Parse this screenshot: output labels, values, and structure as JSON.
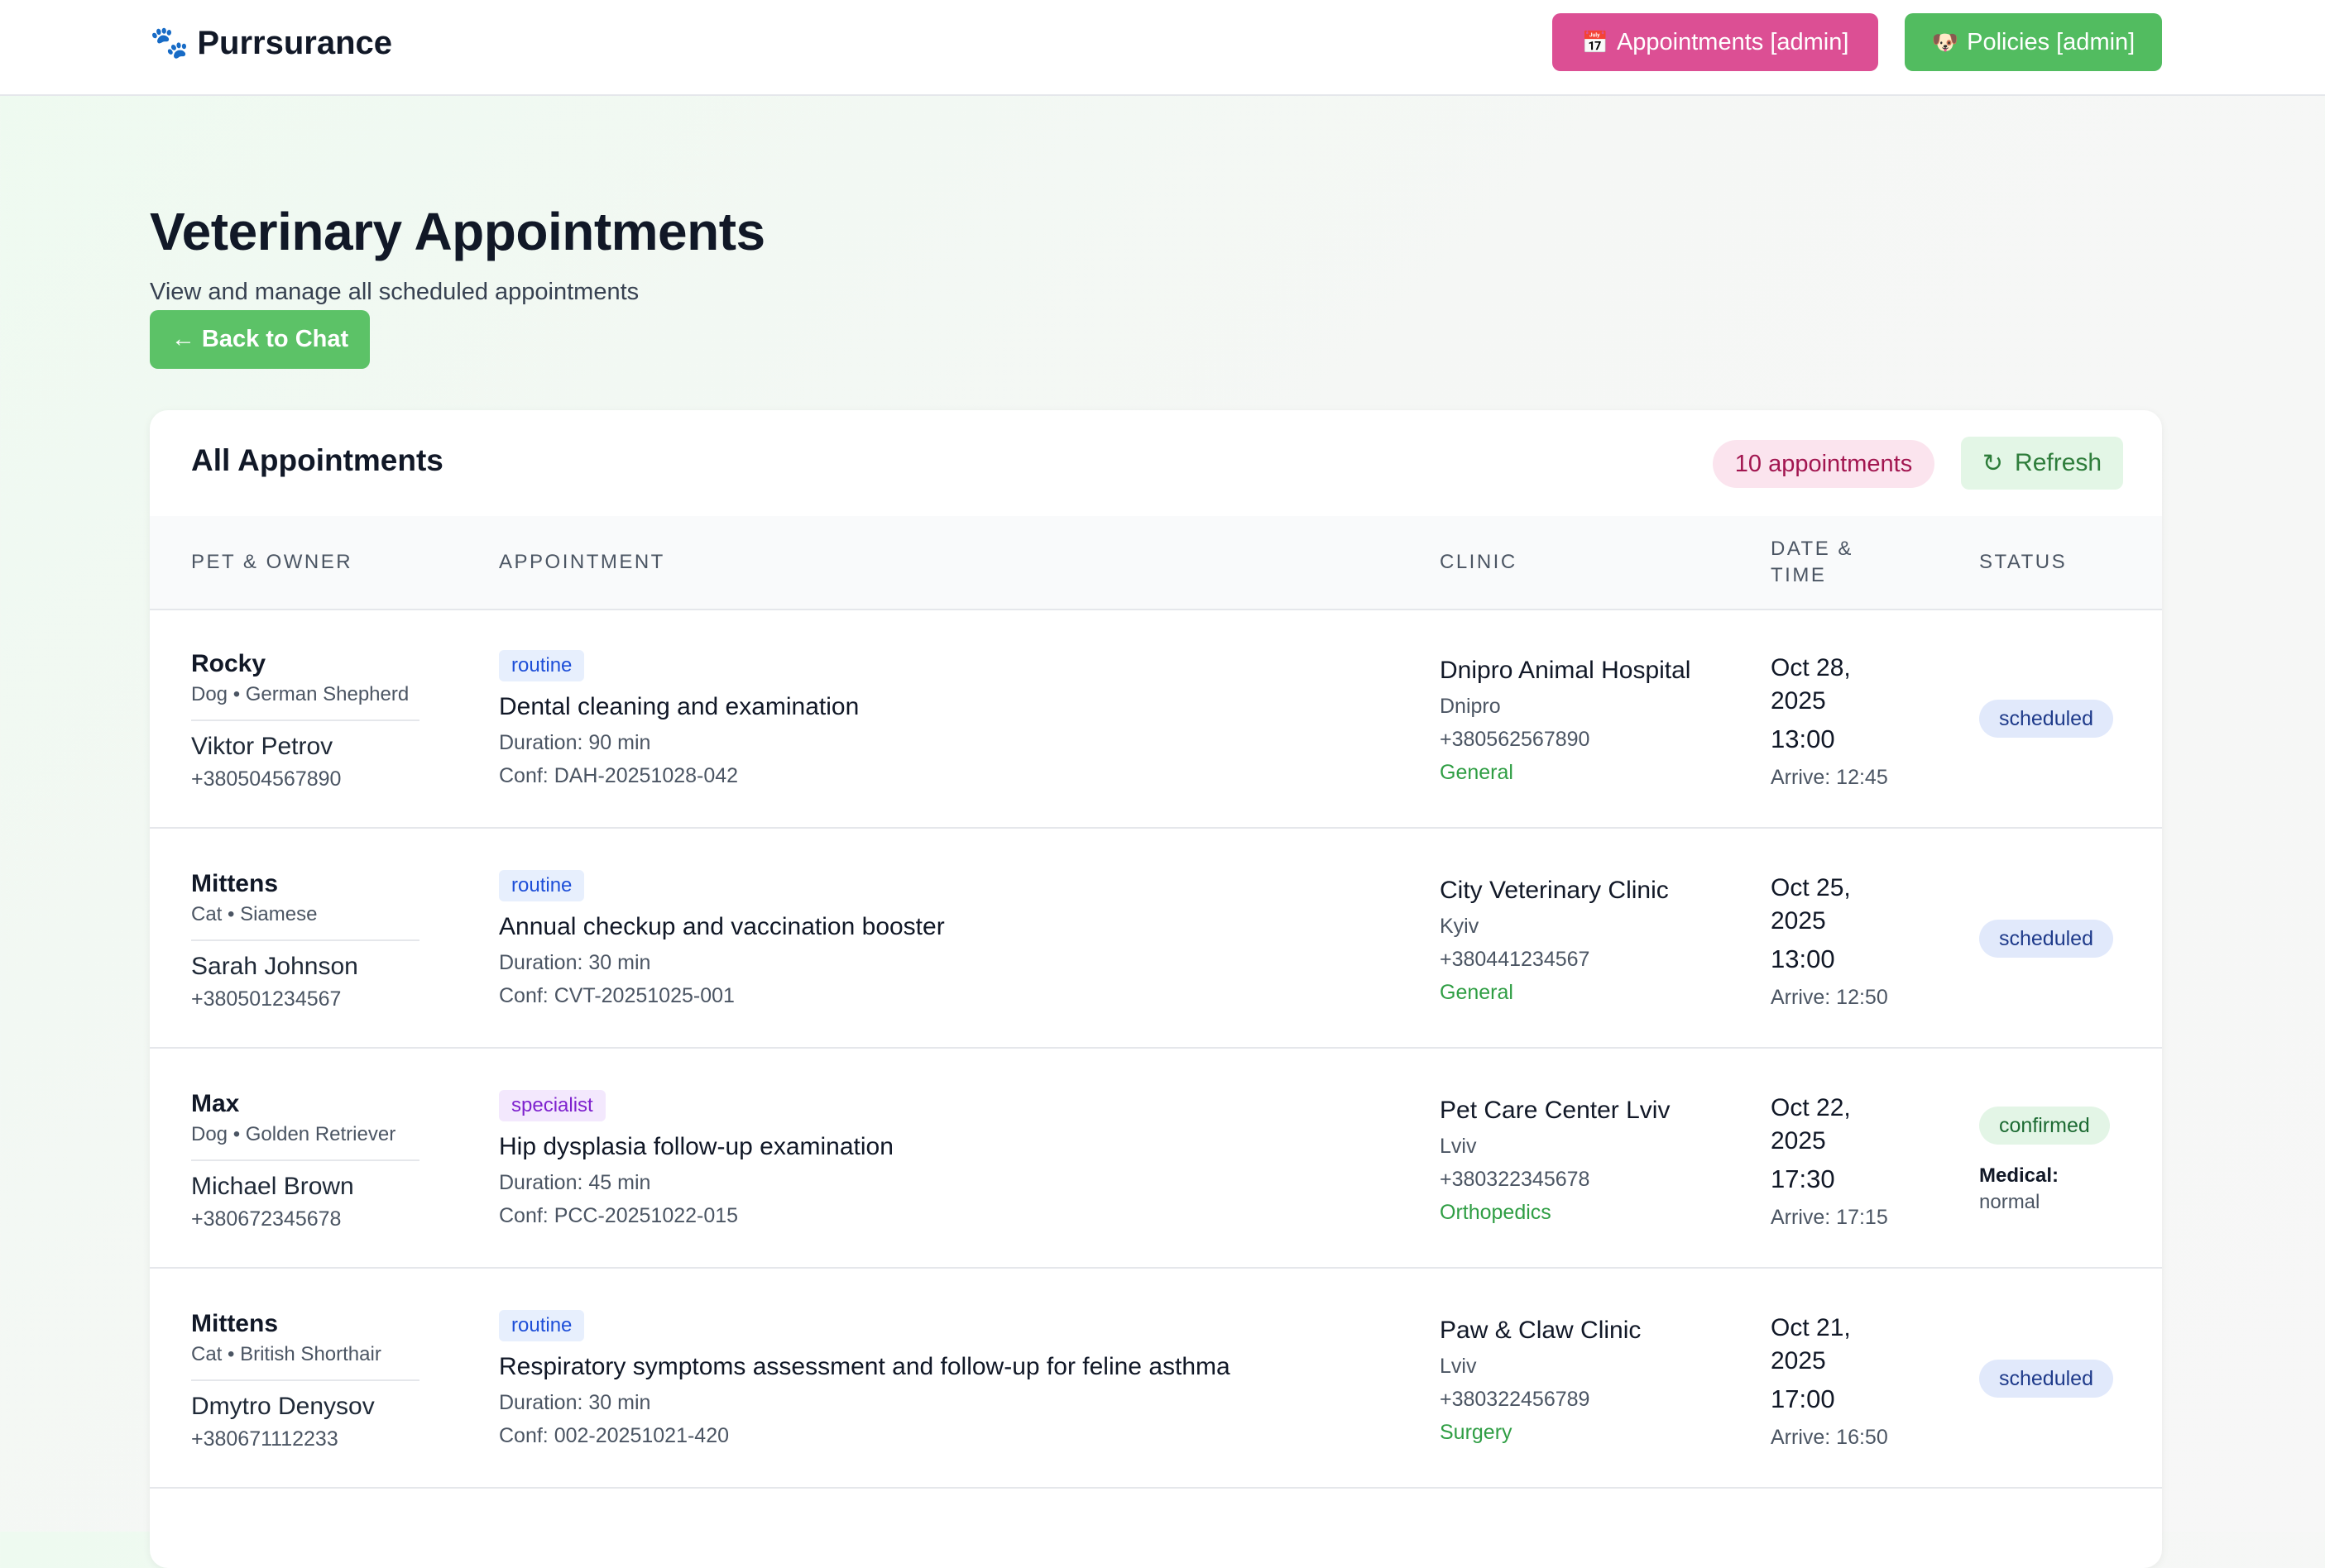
{
  "header": {
    "brand": "Purrsurance",
    "brand_icon": "🐾",
    "appointments_button": "Appointments [admin]",
    "appointments_icon": "📅",
    "policies_button": "Policies [admin]",
    "policies_icon": "🐶"
  },
  "page": {
    "title": "Veterinary Appointments",
    "subtitle": "View and manage all scheduled appointments",
    "back_button": "← Back to Chat"
  },
  "card": {
    "title": "All Appointments",
    "count": "10 appointments",
    "refresh_label": "Refresh",
    "refresh_icon": "↻"
  },
  "columns": {
    "pet_owner": "Pet & Owner",
    "appointment": "Appointment",
    "clinic": "Clinic",
    "date_time_1": "Date &",
    "date_time_2": "Time",
    "status": "Status"
  },
  "appointments": [
    {
      "pet": "Rocky",
      "breed": "Dog • German Shepherd",
      "owner": "Viktor Petrov",
      "owner_phone": "+380504567890",
      "type": "routine",
      "description": "Dental cleaning and examination",
      "duration": "Duration: 90 min",
      "conf": "Conf: DAH-20251028-042",
      "clinic": "Dnipro Animal Hospital",
      "city": "Dnipro",
      "clinic_phone": "+380562567890",
      "specialty": "General",
      "date": "Oct 28, 2025",
      "time": "13:00",
      "arrive": "Arrive: 12:45",
      "status": "scheduled"
    },
    {
      "pet": "Mittens",
      "breed": "Cat • Siamese",
      "owner": "Sarah Johnson",
      "owner_phone": "+380501234567",
      "type": "routine",
      "description": "Annual checkup and vaccination booster",
      "duration": "Duration: 30 min",
      "conf": "Conf: CVT-20251025-001",
      "clinic": "City Veterinary Clinic",
      "city": "Kyiv",
      "clinic_phone": "+380441234567",
      "specialty": "General",
      "date": "Oct 25, 2025",
      "time": "13:00",
      "arrive": "Arrive: 12:50",
      "status": "scheduled"
    },
    {
      "pet": "Max",
      "breed": "Dog • Golden Retriever",
      "owner": "Michael Brown",
      "owner_phone": "+380672345678",
      "type": "specialist",
      "description": "Hip dysplasia follow-up examination",
      "duration": "Duration: 45 min",
      "conf": "Conf: PCC-20251022-015",
      "clinic": "Pet Care Center Lviv",
      "city": "Lviv",
      "clinic_phone": "+380322345678",
      "specialty": "Orthopedics",
      "date": "Oct 22, 2025",
      "time": "17:30",
      "arrive": "Arrive: 17:15",
      "status": "confirmed",
      "medical_label": "Medical:",
      "medical_value": "normal"
    },
    {
      "pet": "Mittens",
      "breed": "Cat • British Shorthair",
      "owner": "Dmytro Denysov",
      "owner_phone": "+380671112233",
      "type": "routine",
      "description": "Respiratory symptoms assessment and follow-up for feline asthma",
      "duration": "Duration: 30 min",
      "conf": "Conf: 002-20251021-420",
      "clinic": "Paw & Claw Clinic",
      "city": "Lviv",
      "clinic_phone": "+380322456789",
      "specialty": "Surgery",
      "date": "Oct 21, 2025",
      "time": "17:00",
      "arrive": "Arrive: 16:50",
      "status": "scheduled"
    }
  ]
}
